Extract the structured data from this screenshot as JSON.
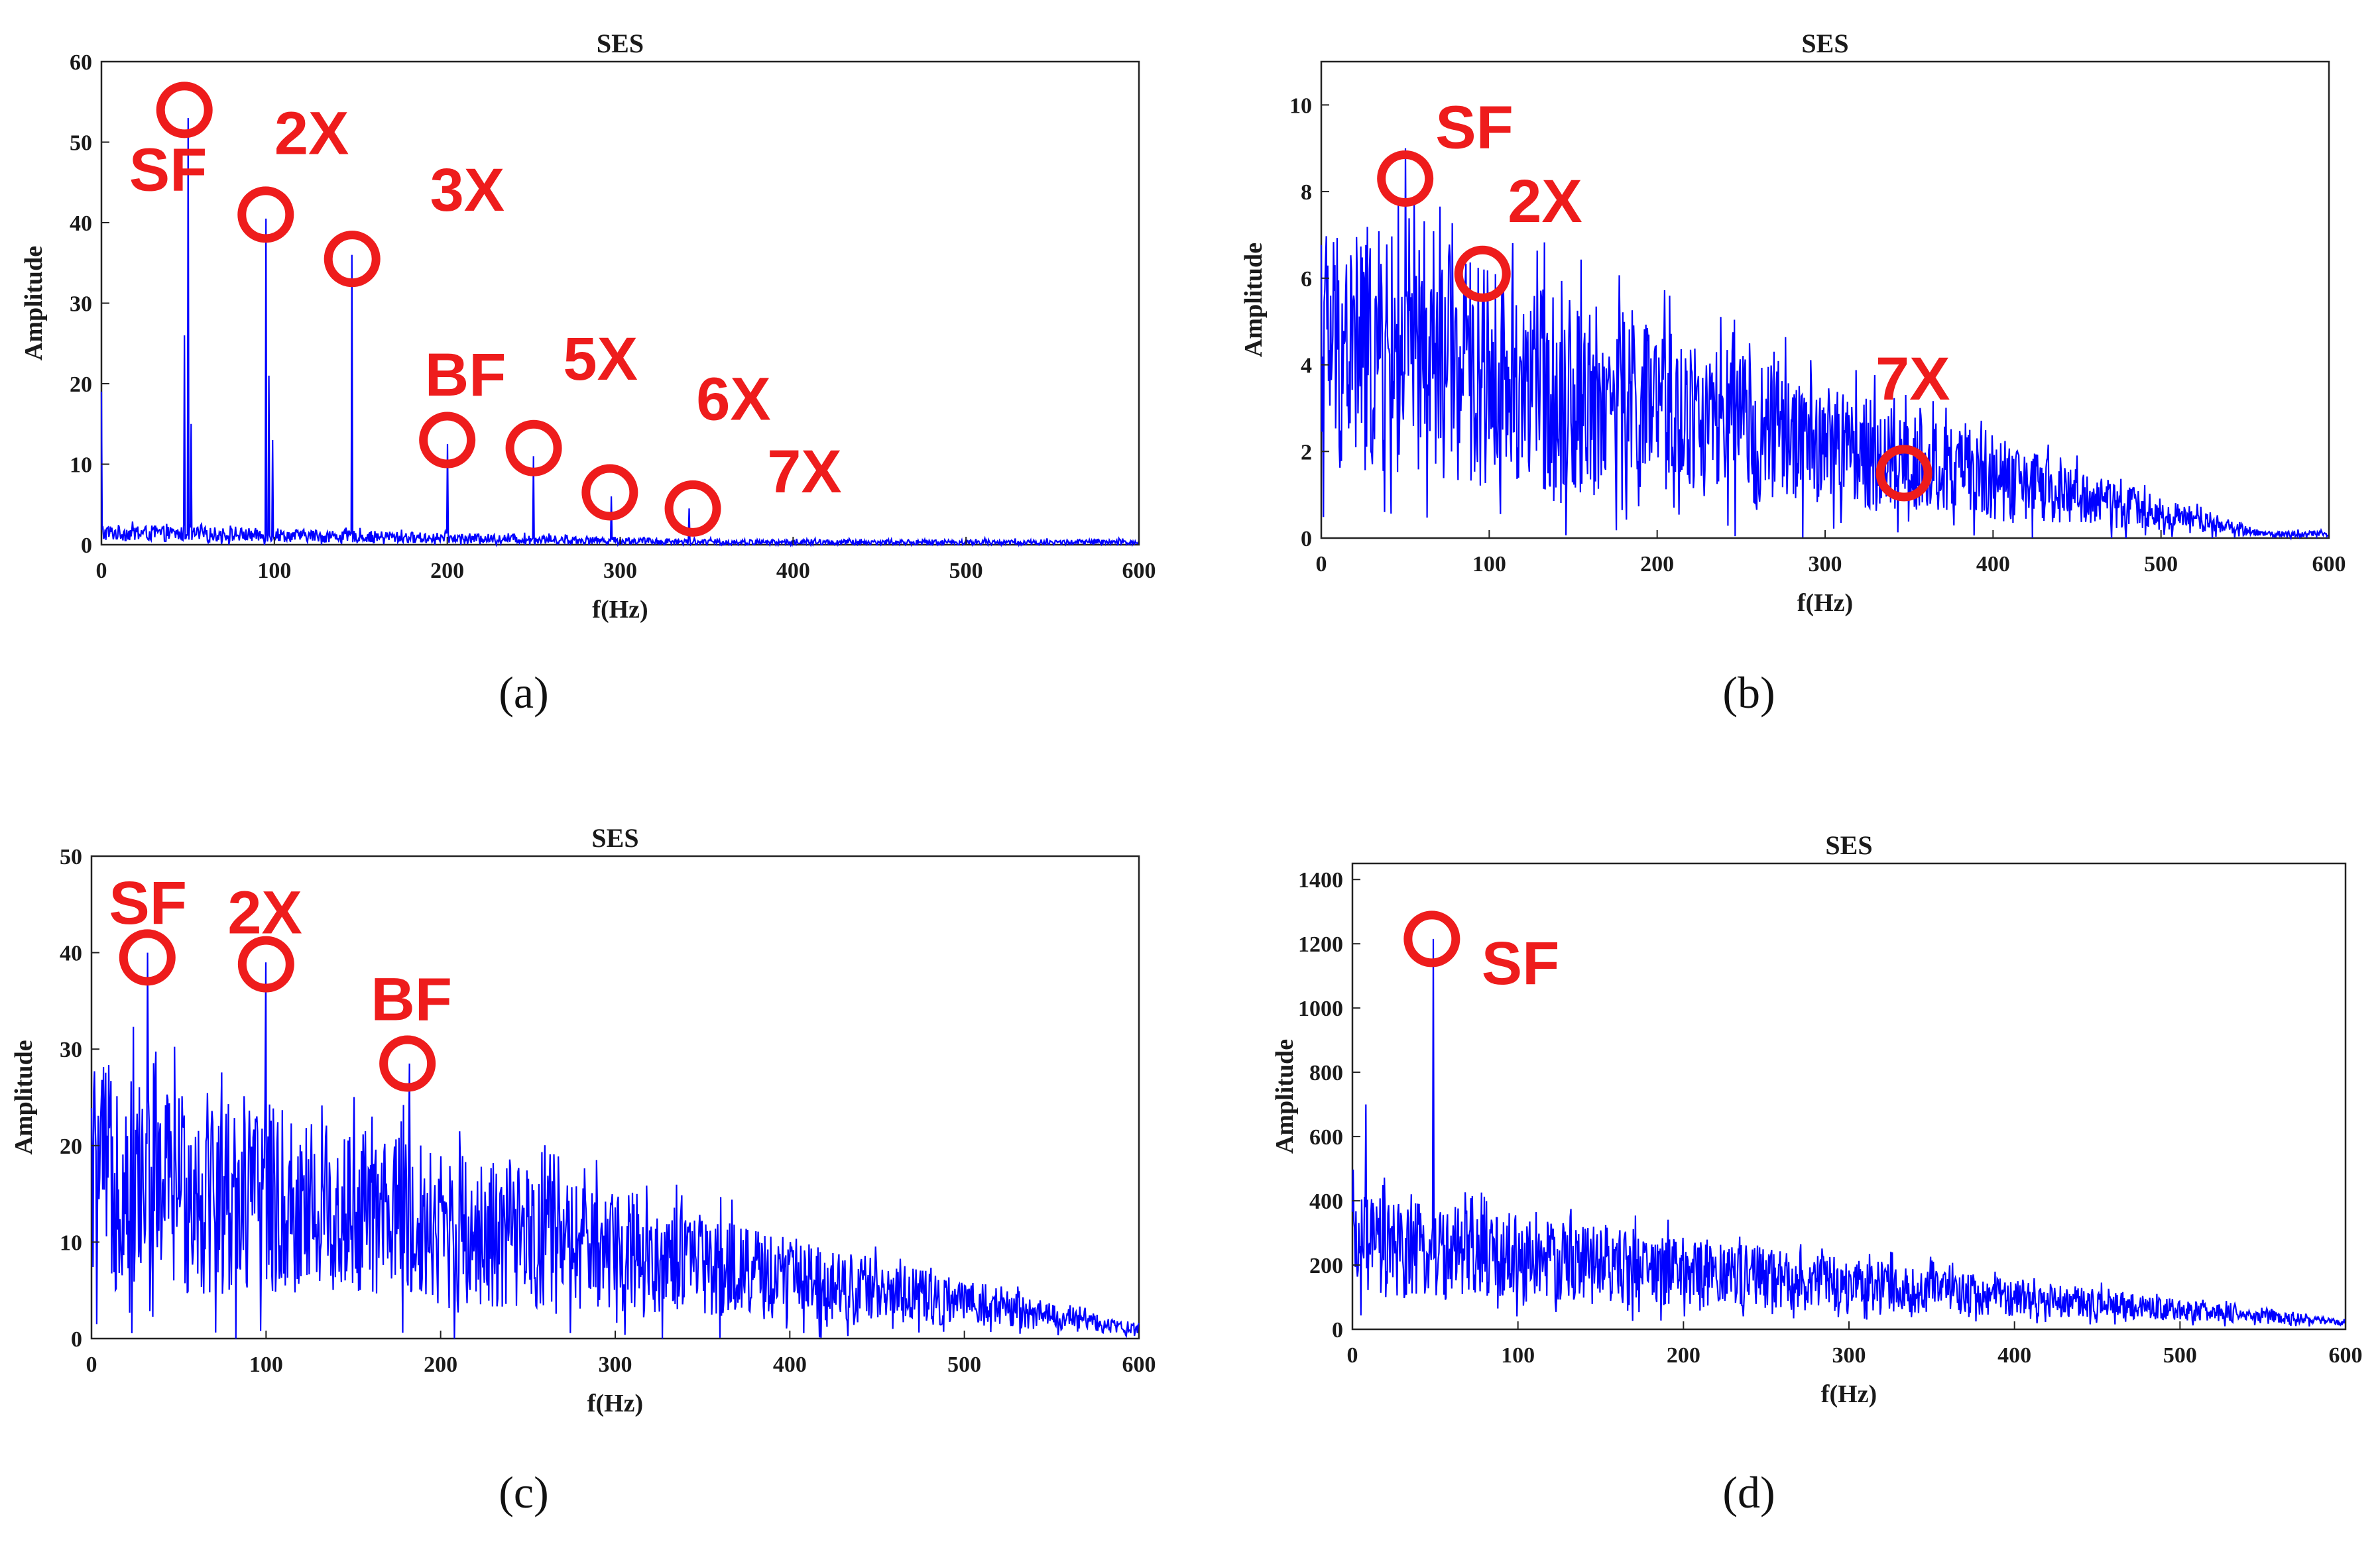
{
  "chart_data": [
    {
      "type": "line",
      "panel": "a",
      "panel_label": "(a)",
      "title": "SES",
      "xlabel": "f(Hz)",
      "ylabel": "Amplitude",
      "xlim": [
        0,
        600
      ],
      "ylim": [
        0,
        60
      ],
      "xticks": [
        0,
        100,
        200,
        300,
        400,
        500,
        600
      ],
      "yticks": [
        0,
        10,
        20,
        30,
        40,
        50,
        60
      ],
      "color": "#0000ff",
      "noise": {
        "base": [
          1.5,
          0.3
        ],
        "spread": [
          1.2,
          0.4
        ],
        "fade_at": 360
      },
      "peaks": [
        {
          "f": 0,
          "amp": 19
        },
        {
          "f": 48,
          "amp": 26
        },
        {
          "f": 50,
          "amp": 53
        },
        {
          "f": 52,
          "amp": 15
        },
        {
          "f": 95,
          "amp": 40.5
        },
        {
          "f": 97,
          "amp": 21
        },
        {
          "f": 99,
          "amp": 13
        },
        {
          "f": 145,
          "amp": 36
        },
        {
          "f": 200,
          "amp": 12.5
        },
        {
          "f": 250,
          "amp": 11
        },
        {
          "f": 295,
          "amp": 6
        },
        {
          "f": 340,
          "amp": 4.5
        }
      ],
      "annotations": [
        {
          "text": "SF",
          "f": 48,
          "amp": 54,
          "label_x": 16,
          "label_y": 44
        },
        {
          "text": "2X",
          "f": 95,
          "amp": 41,
          "label_x": 100,
          "label_y": 48.5
        },
        {
          "text": "3X",
          "f": 145,
          "amp": 35.5,
          "label_x": 190,
          "label_y": 41.5
        },
        {
          "text": "BF",
          "f": 200,
          "amp": 13,
          "label_x": 187,
          "label_y": 18.5
        },
        {
          "text": "5X",
          "f": 250,
          "amp": 12,
          "label_x": 267,
          "label_y": 20.5
        },
        {
          "text": "6X",
          "f": 294,
          "amp": 6.5,
          "label_x": 344,
          "label_y": 15.5
        },
        {
          "text": "7X",
          "f": 342,
          "amp": 4.5,
          "label_x": 385,
          "label_y": 6.5
        }
      ]
    },
    {
      "type": "line",
      "panel": "b",
      "panel_label": "(b)",
      "title": "SES",
      "xlabel": "f(Hz)",
      "ylabel": "Amplitude",
      "xlim": [
        0,
        600
      ],
      "ylim": [
        0,
        11
      ],
      "xticks": [
        0,
        100,
        200,
        300,
        400,
        500,
        600
      ],
      "yticks": [
        0,
        2,
        4,
        6,
        8,
        10
      ],
      "color": "#0000ff",
      "noise": {
        "base": [
          4.5,
          0.1
        ],
        "spread": [
          3.6,
          0.08
        ],
        "fade_at": 560
      },
      "peaks": [
        {
          "f": 50,
          "amp": 9
        },
        {
          "f": 97,
          "amp": 6.2
        },
        {
          "f": 347,
          "amp": 1.1
        }
      ],
      "annotations": [
        {
          "text": "SF",
          "f": 50,
          "amp": 8.3,
          "label_x": 68,
          "label_y": 9.0
        },
        {
          "text": "2X",
          "f": 96,
          "amp": 6.1,
          "label_x": 111,
          "label_y": 7.3
        },
        {
          "text": "7X",
          "f": 347,
          "amp": 1.5,
          "label_x": 330,
          "label_y": 3.2
        }
      ]
    },
    {
      "type": "line",
      "panel": "c",
      "panel_label": "(c)",
      "title": "SES",
      "xlabel": "f(Hz)",
      "ylabel": "Amplitude",
      "xlim": [
        0,
        600
      ],
      "ylim": [
        0,
        50
      ],
      "xticks": [
        0,
        100,
        200,
        300,
        400,
        500,
        600
      ],
      "yticks": [
        0,
        10,
        20,
        30,
        40,
        50
      ],
      "color": "#0000ff",
      "noise": {
        "base": [
          17,
          1
        ],
        "spread": [
          14,
          0.6
        ],
        "fade_at": 600
      },
      "peaks": [
        {
          "f": 32,
          "amp": 40
        },
        {
          "f": 100,
          "amp": 39
        },
        {
          "f": 182,
          "amp": 28.5
        }
      ],
      "annotations": [
        {
          "text": "SF",
          "f": 32,
          "amp": 39.5,
          "label_x": 10,
          "label_y": 43
        },
        {
          "text": "2X",
          "f": 100,
          "amp": 38.8,
          "label_x": 78,
          "label_y": 42
        },
        {
          "text": "BF",
          "f": 181,
          "amp": 28.5,
          "label_x": 160,
          "label_y": 33
        }
      ]
    },
    {
      "type": "line",
      "panel": "d",
      "panel_label": "(d)",
      "title": "SES",
      "xlabel": "f(Hz)",
      "ylabel": "Amplitude",
      "xlim": [
        0,
        600
      ],
      "ylim": [
        0,
        1450
      ],
      "xticks": [
        0,
        100,
        200,
        300,
        400,
        500,
        600
      ],
      "yticks": [
        0,
        200,
        400,
        600,
        800,
        1000,
        1200,
        1400
      ],
      "color": "#0000ff",
      "noise": {
        "base": [
          260,
          20
        ],
        "spread": [
          190,
          10
        ],
        "fade_at": 600
      },
      "peaks": [
        {
          "f": 49,
          "amp": 1215
        },
        {
          "f": 8,
          "amp": 700
        }
      ],
      "annotations": [
        {
          "text": "SF",
          "f": 48,
          "amp": 1215,
          "label_x": 78,
          "label_y": 1075
        }
      ]
    }
  ]
}
